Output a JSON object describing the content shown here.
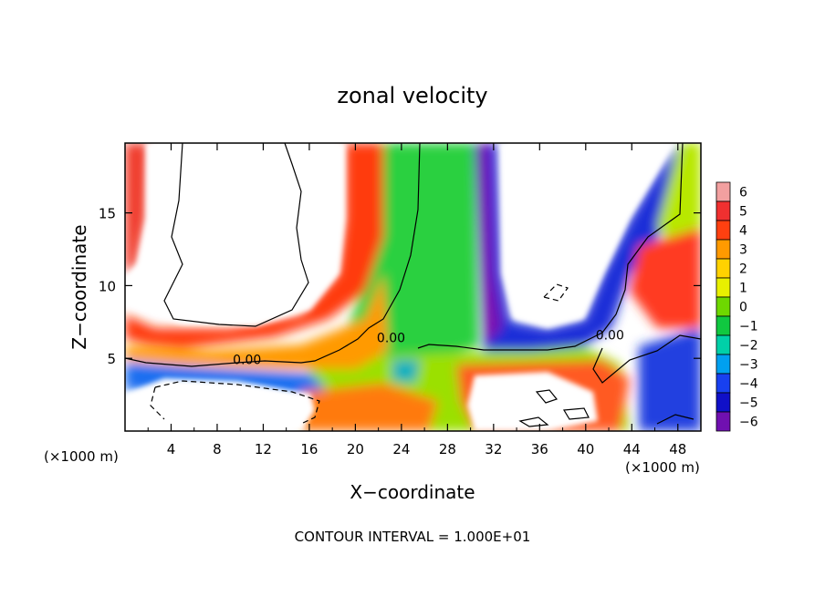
{
  "chart_data": {
    "type": "heatmap",
    "title": "zonal velocity",
    "xlabel": "X−coordinate",
    "ylabel": "Z−coordinate",
    "x_unit": "(×1000 m)",
    "y_unit": "(×1000 m)",
    "xlim": [
      0,
      50
    ],
    "ylim": [
      0,
      19.8
    ],
    "x_ticks": [
      4,
      8,
      12,
      16,
      20,
      24,
      28,
      32,
      36,
      40,
      44,
      48
    ],
    "x_tick_labels": [
      "4",
      "8",
      "12",
      "16",
      "20",
      "24",
      "28",
      "32",
      "36",
      "40",
      "44",
      "48"
    ],
    "y_ticks": [
      5,
      10,
      15
    ],
    "y_tick_labels": [
      "5",
      "10",
      "15"
    ],
    "colorbar": {
      "levels": [
        6,
        5,
        4,
        3,
        2,
        1,
        0,
        -1,
        -2,
        -3,
        -4,
        -5,
        -6
      ],
      "labels": [
        "6",
        "5",
        "4",
        "3",
        "2",
        "1",
        "0",
        "−1",
        "−2",
        "−3",
        "−4",
        "−5",
        "−6"
      ],
      "colors": [
        "#f2a0a0",
        "#f03030",
        "#ff4010",
        "#ff9a00",
        "#ffd200",
        "#e8f000",
        "#6ed800",
        "#10c840",
        "#00d0a8",
        "#00a0f0",
        "#1840f0",
        "#1010c8",
        "#7010b0"
      ],
      "position": "right"
    },
    "contour_labels": [
      {
        "text": "0.00",
        "x": 10.6,
        "z": 4.8
      },
      {
        "text": "0.00",
        "x": 23.1,
        "z": 6.3
      },
      {
        "text": "0.00",
        "x": 42.1,
        "z": 6.5
      }
    ],
    "footer": "CONTOUR INTERVAL = 1.000E+01"
  }
}
